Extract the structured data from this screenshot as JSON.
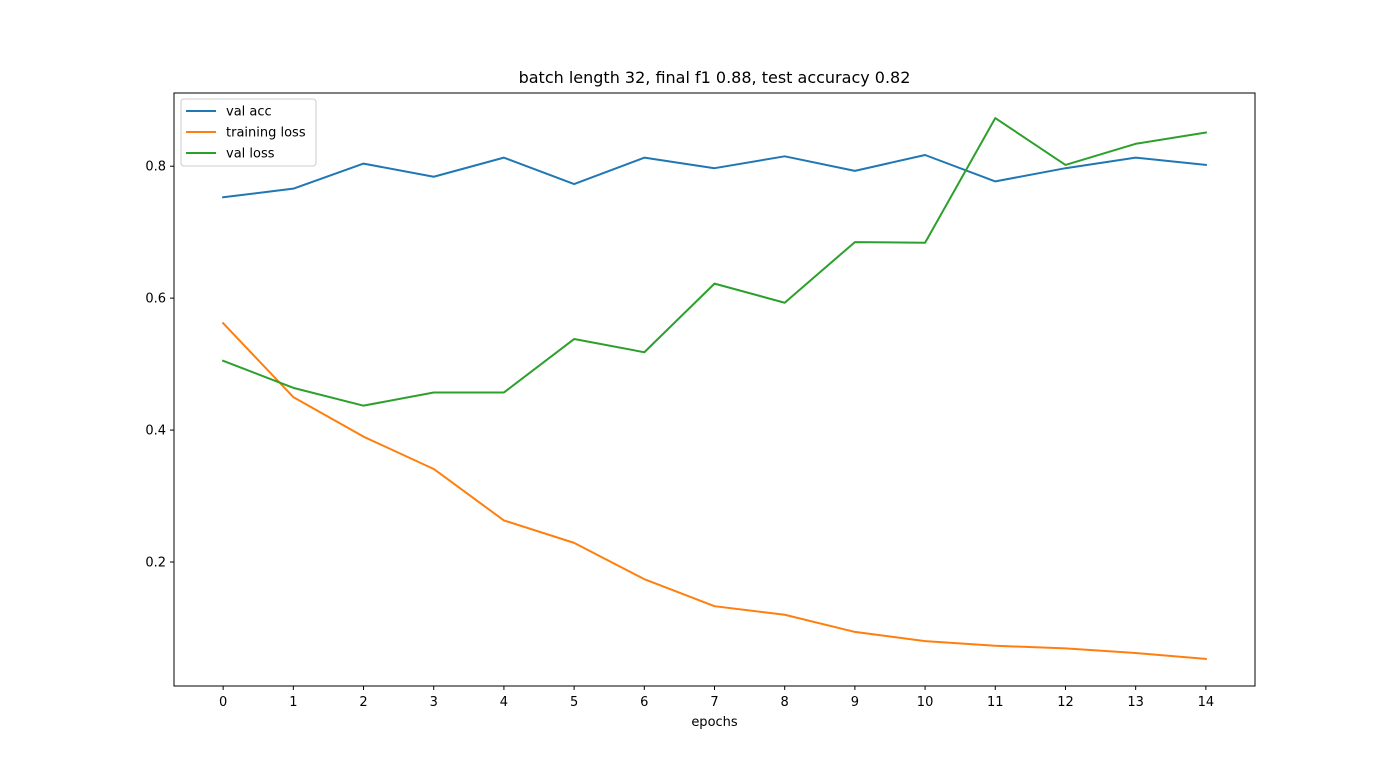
{
  "chart_data": {
    "type": "line",
    "title": "batch length 32, final f1 0.88, test accuracy 0.82",
    "xlabel": "epochs",
    "ylabel": "",
    "x": [
      0,
      1,
      2,
      3,
      4,
      5,
      6,
      7,
      8,
      9,
      10,
      11,
      12,
      13,
      14
    ],
    "xlim": [
      -0.7,
      14.7
    ],
    "ylim": [
      0.012,
      0.911
    ],
    "yticks": [
      0.2,
      0.4,
      0.6,
      0.8
    ],
    "ytick_labels": [
      "0.2",
      "0.4",
      "0.6",
      "0.8"
    ],
    "grid": false,
    "legend_position": "top-left",
    "series": [
      {
        "name": "val acc",
        "color": "#1f77b4",
        "values": [
          0.753,
          0.766,
          0.804,
          0.784,
          0.813,
          0.773,
          0.813,
          0.797,
          0.815,
          0.793,
          0.817,
          0.777,
          0.797,
          0.813,
          0.802
        ]
      },
      {
        "name": "training loss",
        "color": "#ff7f0e",
        "values": [
          0.562,
          0.45,
          0.39,
          0.341,
          0.263,
          0.229,
          0.174,
          0.133,
          0.12,
          0.094,
          0.08,
          0.073,
          0.069,
          0.062,
          0.053
        ]
      },
      {
        "name": "val loss",
        "color": "#2ca02c",
        "values": [
          0.505,
          0.464,
          0.437,
          0.457,
          0.457,
          0.538,
          0.518,
          0.622,
          0.593,
          0.685,
          0.684,
          0.873,
          0.802,
          0.834,
          0.851
        ]
      }
    ]
  }
}
